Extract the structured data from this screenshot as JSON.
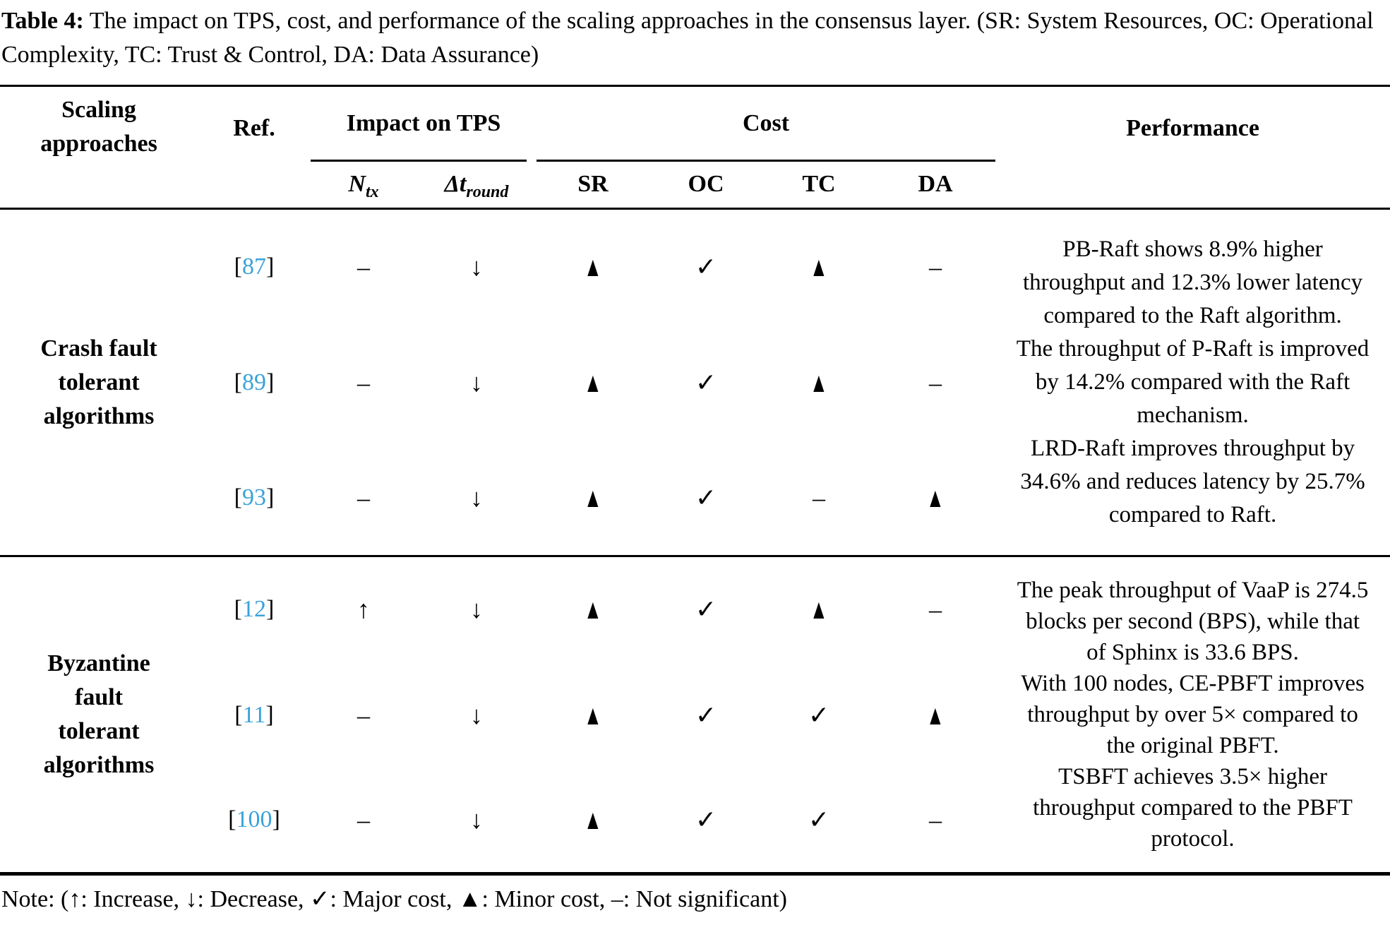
{
  "caption": {
    "prefix": "Table 4:",
    "text": " The impact on TPS, cost, and performance of the scaling approaches in the consensus layer. (SR: System Resources, OC: Operational Complexity, TC: Trust & Control, DA: Data Assurance)"
  },
  "colors": {
    "citation_blue": "#3aa2da",
    "text_black": "#000000",
    "background": "#ffffff"
  },
  "header": {
    "scaling_lines": [
      "Scaling",
      "approaches"
    ],
    "ref": "Ref.",
    "impact_tps": "Impact on TPS",
    "cost": "Cost",
    "performance": "Performance",
    "ntx_base": "N",
    "ntx_sub": "tx",
    "dt_base": "Δt",
    "dt_sub": "round",
    "sr": "SR",
    "oc": "OC",
    "tc": "TC",
    "da": "DA"
  },
  "ref_brackets": {
    "open": "[",
    "close": "]"
  },
  "groups": [
    {
      "label_lines": [
        "Crash fault",
        "tolerant",
        "algorithms"
      ],
      "rows": [
        {
          "ref": "87",
          "ntx": "–",
          "dt": "↓",
          "sr": "▲",
          "oc": "✓",
          "tc": "▲",
          "da": "–"
        },
        {
          "ref": "89",
          "ntx": "–",
          "dt": "↓",
          "sr": "▲",
          "oc": "✓",
          "tc": "▲",
          "da": "–"
        },
        {
          "ref": "93",
          "ntx": "–",
          "dt": "↓",
          "sr": "▲",
          "oc": "✓",
          "tc": "–",
          "da": "▲"
        }
      ],
      "performance": [
        "PB-Raft shows 8.9% higher throughput and 12.3% lower latency compared to the Raft algorithm.",
        "The throughput of P-Raft is improved by 14.2% compared with the Raft mechanism.",
        "LRD-Raft improves throughput by 34.6% and reduces latency by 25.7% compared to Raft."
      ]
    },
    {
      "label_lines": [
        "Byzantine",
        "fault",
        "tolerant",
        "algorithms"
      ],
      "rows": [
        {
          "ref": "12",
          "ntx": "↑",
          "dt": "↓",
          "sr": "▲",
          "oc": "✓",
          "tc": "▲",
          "da": "–"
        },
        {
          "ref": "11",
          "ntx": "–",
          "dt": "↓",
          "sr": "▲",
          "oc": "✓",
          "tc": "✓",
          "da": "▲"
        },
        {
          "ref": "100",
          "ntx": "–",
          "dt": "↓",
          "sr": "▲",
          "oc": "✓",
          "tc": "✓",
          "da": "–"
        }
      ],
      "performance": [
        "The peak throughput of VaaP is 274.5 blocks per second (BPS), while that of Sphinx is 33.6 BPS.",
        "With 100 nodes, CE-PBFT improves throughput by over 5× compared to the original PBFT.",
        "TSBFT achieves 3.5× higher throughput compared to the PBFT protocol."
      ]
    }
  ],
  "note": "Note: (↑: Increase, ↓: Decrease, ✓: Major cost, ▲: Minor cost, –: Not significant)"
}
